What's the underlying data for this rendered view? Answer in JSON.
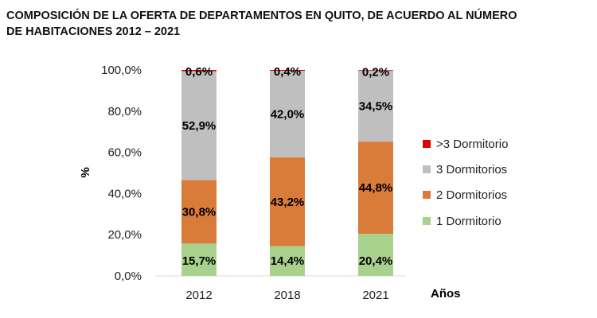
{
  "title_line1": "COMPOSICIÓN DE LA OFERTA DE DEPARTAMENTOS EN QUITO, DE ACUERDO AL NÚMERO",
  "title_line2": "DE HABITACIONES 2012 – 2021",
  "chart_data": {
    "type": "bar",
    "stacked": true,
    "title": "COMPOSICIÓN DE LA OFERTA DE DEPARTAMENTOS EN QUITO, DE ACUERDO AL NÚMERO DE HABITACIONES 2012 – 2021",
    "xlabel": "Años",
    "ylabel": "%",
    "ylim": [
      0,
      100
    ],
    "yticks": [
      "0,0%",
      "20,0%",
      "40,0%",
      "60,0%",
      "80,0%",
      "100,0%"
    ],
    "ytick_values": [
      0,
      20,
      40,
      60,
      80,
      100
    ],
    "categories": [
      "2012",
      "2018",
      "2021"
    ],
    "grid": false,
    "legend_position": "right",
    "series": [
      {
        "name": "1 Dormitorio",
        "color": "#a9d18e",
        "values": [
          15.7,
          14.4,
          20.4
        ],
        "labels": [
          "15,7%",
          "14,4%",
          "20,4%"
        ]
      },
      {
        "name": "2 Dormitorios",
        "color": "#d97c3a",
        "values": [
          30.8,
          43.2,
          44.8
        ],
        "labels": [
          "30,8%",
          "43,2%",
          "44,8%"
        ]
      },
      {
        "name": "3 Dormitorios",
        "color": "#bfbfbf",
        "values": [
          52.9,
          42.0,
          34.5
        ],
        "labels": [
          "52,9%",
          "42,0%",
          "34,5%"
        ]
      },
      {
        "name": ">3 Dormitorio",
        "color": "#e00000",
        "values": [
          0.6,
          0.4,
          0.2
        ],
        "labels": [
          "0,6%",
          "0,4%",
          "0,2%"
        ]
      }
    ],
    "legend_order": [
      ">3 Dormitorio",
      "3 Dormitorios",
      "2 Dormitorios",
      "1 Dormitorio"
    ]
  }
}
